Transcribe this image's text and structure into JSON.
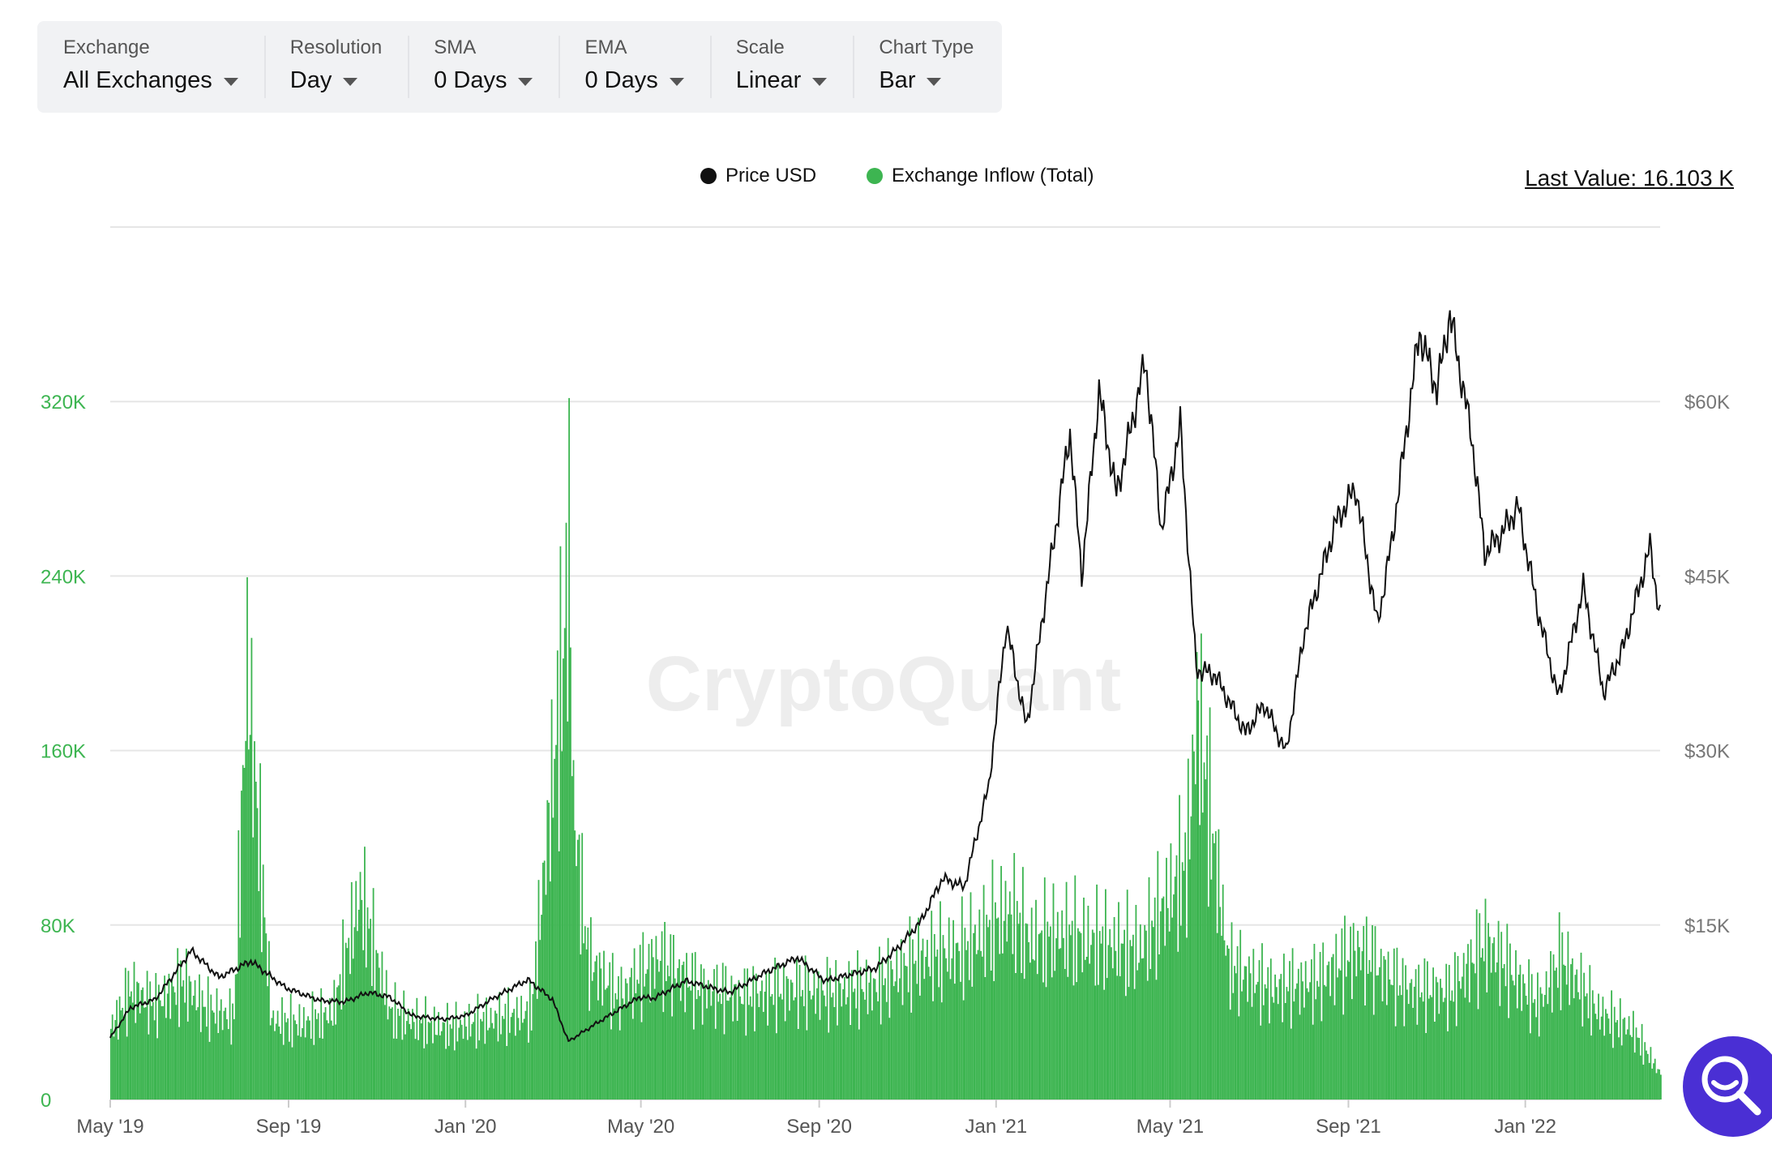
{
  "toolbar": {
    "groups": [
      {
        "label": "Exchange",
        "value": "All Exchanges"
      },
      {
        "label": "Resolution",
        "value": "Day"
      },
      {
        "label": "SMA",
        "value": "0 Days"
      },
      {
        "label": "EMA",
        "value": "0 Days"
      },
      {
        "label": "Scale",
        "value": "Linear"
      },
      {
        "label": "Chart Type",
        "value": "Bar"
      }
    ]
  },
  "legend": {
    "price_label": "Price USD",
    "inflow_label": "Exchange Inflow (Total)"
  },
  "last_value": "Last Value: 16.103 K",
  "watermark": "CryptoQuant",
  "colors": {
    "inflow": "#3db551",
    "price": "#111111",
    "left_axis": "#3db551",
    "right_axis": "#777777",
    "accent": "#4a2fd4"
  },
  "icons": {
    "search_button": "search-icon"
  },
  "chart_data": {
    "type": "bar",
    "x_range": [
      "2019-05-01",
      "2022-04-04"
    ],
    "x_ticks": [
      "May '19",
      "Sep '19",
      "Jan '20",
      "May '20",
      "Sep '20",
      "Jan '21",
      "May '21",
      "Sep '21",
      "Jan '22"
    ],
    "x_tick_dates": [
      "2019-05-01",
      "2019-09-01",
      "2020-01-01",
      "2020-05-01",
      "2020-09-01",
      "2021-01-01",
      "2021-05-01",
      "2021-09-01",
      "2022-01-01"
    ],
    "y_left": {
      "ticks": [
        "0",
        "80K",
        "160K",
        "240K",
        "320K"
      ],
      "tick_values": [
        0,
        80000,
        160000,
        240000,
        320000
      ],
      "range": [
        0,
        400000
      ]
    },
    "y_right": {
      "ticks": [
        "$15K",
        "$30K",
        "$45K",
        "$60K"
      ],
      "tick_values": [
        15000,
        30000,
        45000,
        60000
      ],
      "range": [
        0,
        75000
      ]
    },
    "grid": true,
    "legend_position": "top-center",
    "series": [
      {
        "name": "Exchange Inflow (Total)",
        "kind": "bar",
        "axis": "left",
        "points": [
          [
            "2019-05-01",
            45000
          ],
          [
            "2019-05-15",
            70000
          ],
          [
            "2019-06-01",
            60000
          ],
          [
            "2019-06-20",
            75000
          ],
          [
            "2019-07-05",
            58000
          ],
          [
            "2019-07-25",
            52000
          ],
          [
            "2019-08-03",
            275000
          ],
          [
            "2019-08-20",
            50000
          ],
          [
            "2019-09-10",
            48000
          ],
          [
            "2019-10-01",
            55000
          ],
          [
            "2019-10-20",
            130000
          ],
          [
            "2019-11-10",
            55000
          ],
          [
            "2019-12-01",
            48000
          ],
          [
            "2019-12-20",
            45000
          ],
          [
            "2020-01-15",
            50000
          ],
          [
            "2020-02-15",
            55000
          ],
          [
            "2020-03-08",
            280000
          ],
          [
            "2020-03-12",
            358000
          ],
          [
            "2020-03-15",
            185000
          ],
          [
            "2020-03-25",
            90000
          ],
          [
            "2020-04-15",
            65000
          ],
          [
            "2020-05-12",
            90000
          ],
          [
            "2020-06-10",
            70000
          ],
          [
            "2020-07-10",
            65000
          ],
          [
            "2020-08-10",
            70000
          ],
          [
            "2020-09-10",
            68000
          ],
          [
            "2020-10-10",
            72000
          ],
          [
            "2020-11-10",
            90000
          ],
          [
            "2020-12-10",
            95000
          ],
          [
            "2021-01-10",
            120000
          ],
          [
            "2021-01-25",
            100000
          ],
          [
            "2021-02-15",
            105000
          ],
          [
            "2021-03-10",
            100000
          ],
          [
            "2021-04-10",
            95000
          ],
          [
            "2021-05-12",
            150000
          ],
          [
            "2021-05-19",
            250000
          ],
          [
            "2021-06-10",
            85000
          ],
          [
            "2021-07-10",
            70000
          ],
          [
            "2021-08-10",
            75000
          ],
          [
            "2021-09-07",
            95000
          ],
          [
            "2021-10-10",
            70000
          ],
          [
            "2021-11-10",
            68000
          ],
          [
            "2021-12-04",
            100000
          ],
          [
            "2022-01-10",
            60000
          ],
          [
            "2022-01-25",
            90000
          ],
          [
            "2022-02-20",
            55000
          ],
          [
            "2022-03-15",
            45000
          ],
          [
            "2022-04-04",
            16103
          ]
        ]
      },
      {
        "name": "Price USD",
        "kind": "line",
        "axis": "right",
        "points": [
          [
            "2019-05-01",
            5300
          ],
          [
            "2019-05-15",
            7900
          ],
          [
            "2019-06-01",
            8600
          ],
          [
            "2019-06-26",
            12800
          ],
          [
            "2019-07-15",
            10500
          ],
          [
            "2019-08-06",
            11900
          ],
          [
            "2019-08-30",
            9600
          ],
          [
            "2019-09-23",
            8500
          ],
          [
            "2019-10-10",
            8400
          ],
          [
            "2019-10-26",
            9200
          ],
          [
            "2019-11-10",
            8800
          ],
          [
            "2019-11-25",
            7200
          ],
          [
            "2019-12-17",
            6900
          ],
          [
            "2020-01-01",
            7200
          ],
          [
            "2020-01-20",
            8700
          ],
          [
            "2020-02-13",
            10300
          ],
          [
            "2020-03-01",
            8600
          ],
          [
            "2020-03-12",
            5000
          ],
          [
            "2020-04-01",
            6600
          ],
          [
            "2020-04-30",
            8800
          ],
          [
            "2020-05-10",
            8700
          ],
          [
            "2020-06-01",
            10200
          ],
          [
            "2020-07-01",
            9200
          ],
          [
            "2020-07-27",
            11000
          ],
          [
            "2020-08-17",
            12200
          ],
          [
            "2020-09-05",
            10200
          ],
          [
            "2020-10-10",
            11300
          ],
          [
            "2020-10-25",
            13000
          ],
          [
            "2020-11-10",
            15300
          ],
          [
            "2020-11-25",
            19000
          ],
          [
            "2020-12-10",
            18300
          ],
          [
            "2020-12-27",
            27000
          ],
          [
            "2021-01-08",
            40800
          ],
          [
            "2021-01-22",
            32000
          ],
          [
            "2021-02-08",
            46500
          ],
          [
            "2021-02-21",
            57400
          ],
          [
            "2021-03-01",
            45000
          ],
          [
            "2021-03-13",
            60900
          ],
          [
            "2021-03-25",
            52000
          ],
          [
            "2021-04-14",
            63500
          ],
          [
            "2021-04-25",
            49000
          ],
          [
            "2021-05-08",
            58000
          ],
          [
            "2021-05-19",
            37000
          ],
          [
            "2021-06-01",
            36500
          ],
          [
            "2021-06-22",
            31500
          ],
          [
            "2021-07-05",
            34000
          ],
          [
            "2021-07-20",
            29800
          ],
          [
            "2021-08-01",
            39800
          ],
          [
            "2021-08-23",
            49500
          ],
          [
            "2021-09-06",
            52600
          ],
          [
            "2021-09-21",
            40800
          ],
          [
            "2021-10-01",
            48000
          ],
          [
            "2021-10-20",
            66000
          ],
          [
            "2021-11-01",
            61000
          ],
          [
            "2021-11-10",
            67500
          ],
          [
            "2021-11-25",
            57000
          ],
          [
            "2021-12-04",
            47000
          ],
          [
            "2021-12-15",
            48500
          ],
          [
            "2021-12-27",
            51000
          ],
          [
            "2022-01-10",
            41800
          ],
          [
            "2022-01-24",
            34500
          ],
          [
            "2022-02-10",
            44000
          ],
          [
            "2022-02-24",
            35000
          ],
          [
            "2022-03-10",
            39000
          ],
          [
            "2022-03-28",
            47500
          ],
          [
            "2022-04-04",
            41500
          ]
        ]
      }
    ]
  }
}
